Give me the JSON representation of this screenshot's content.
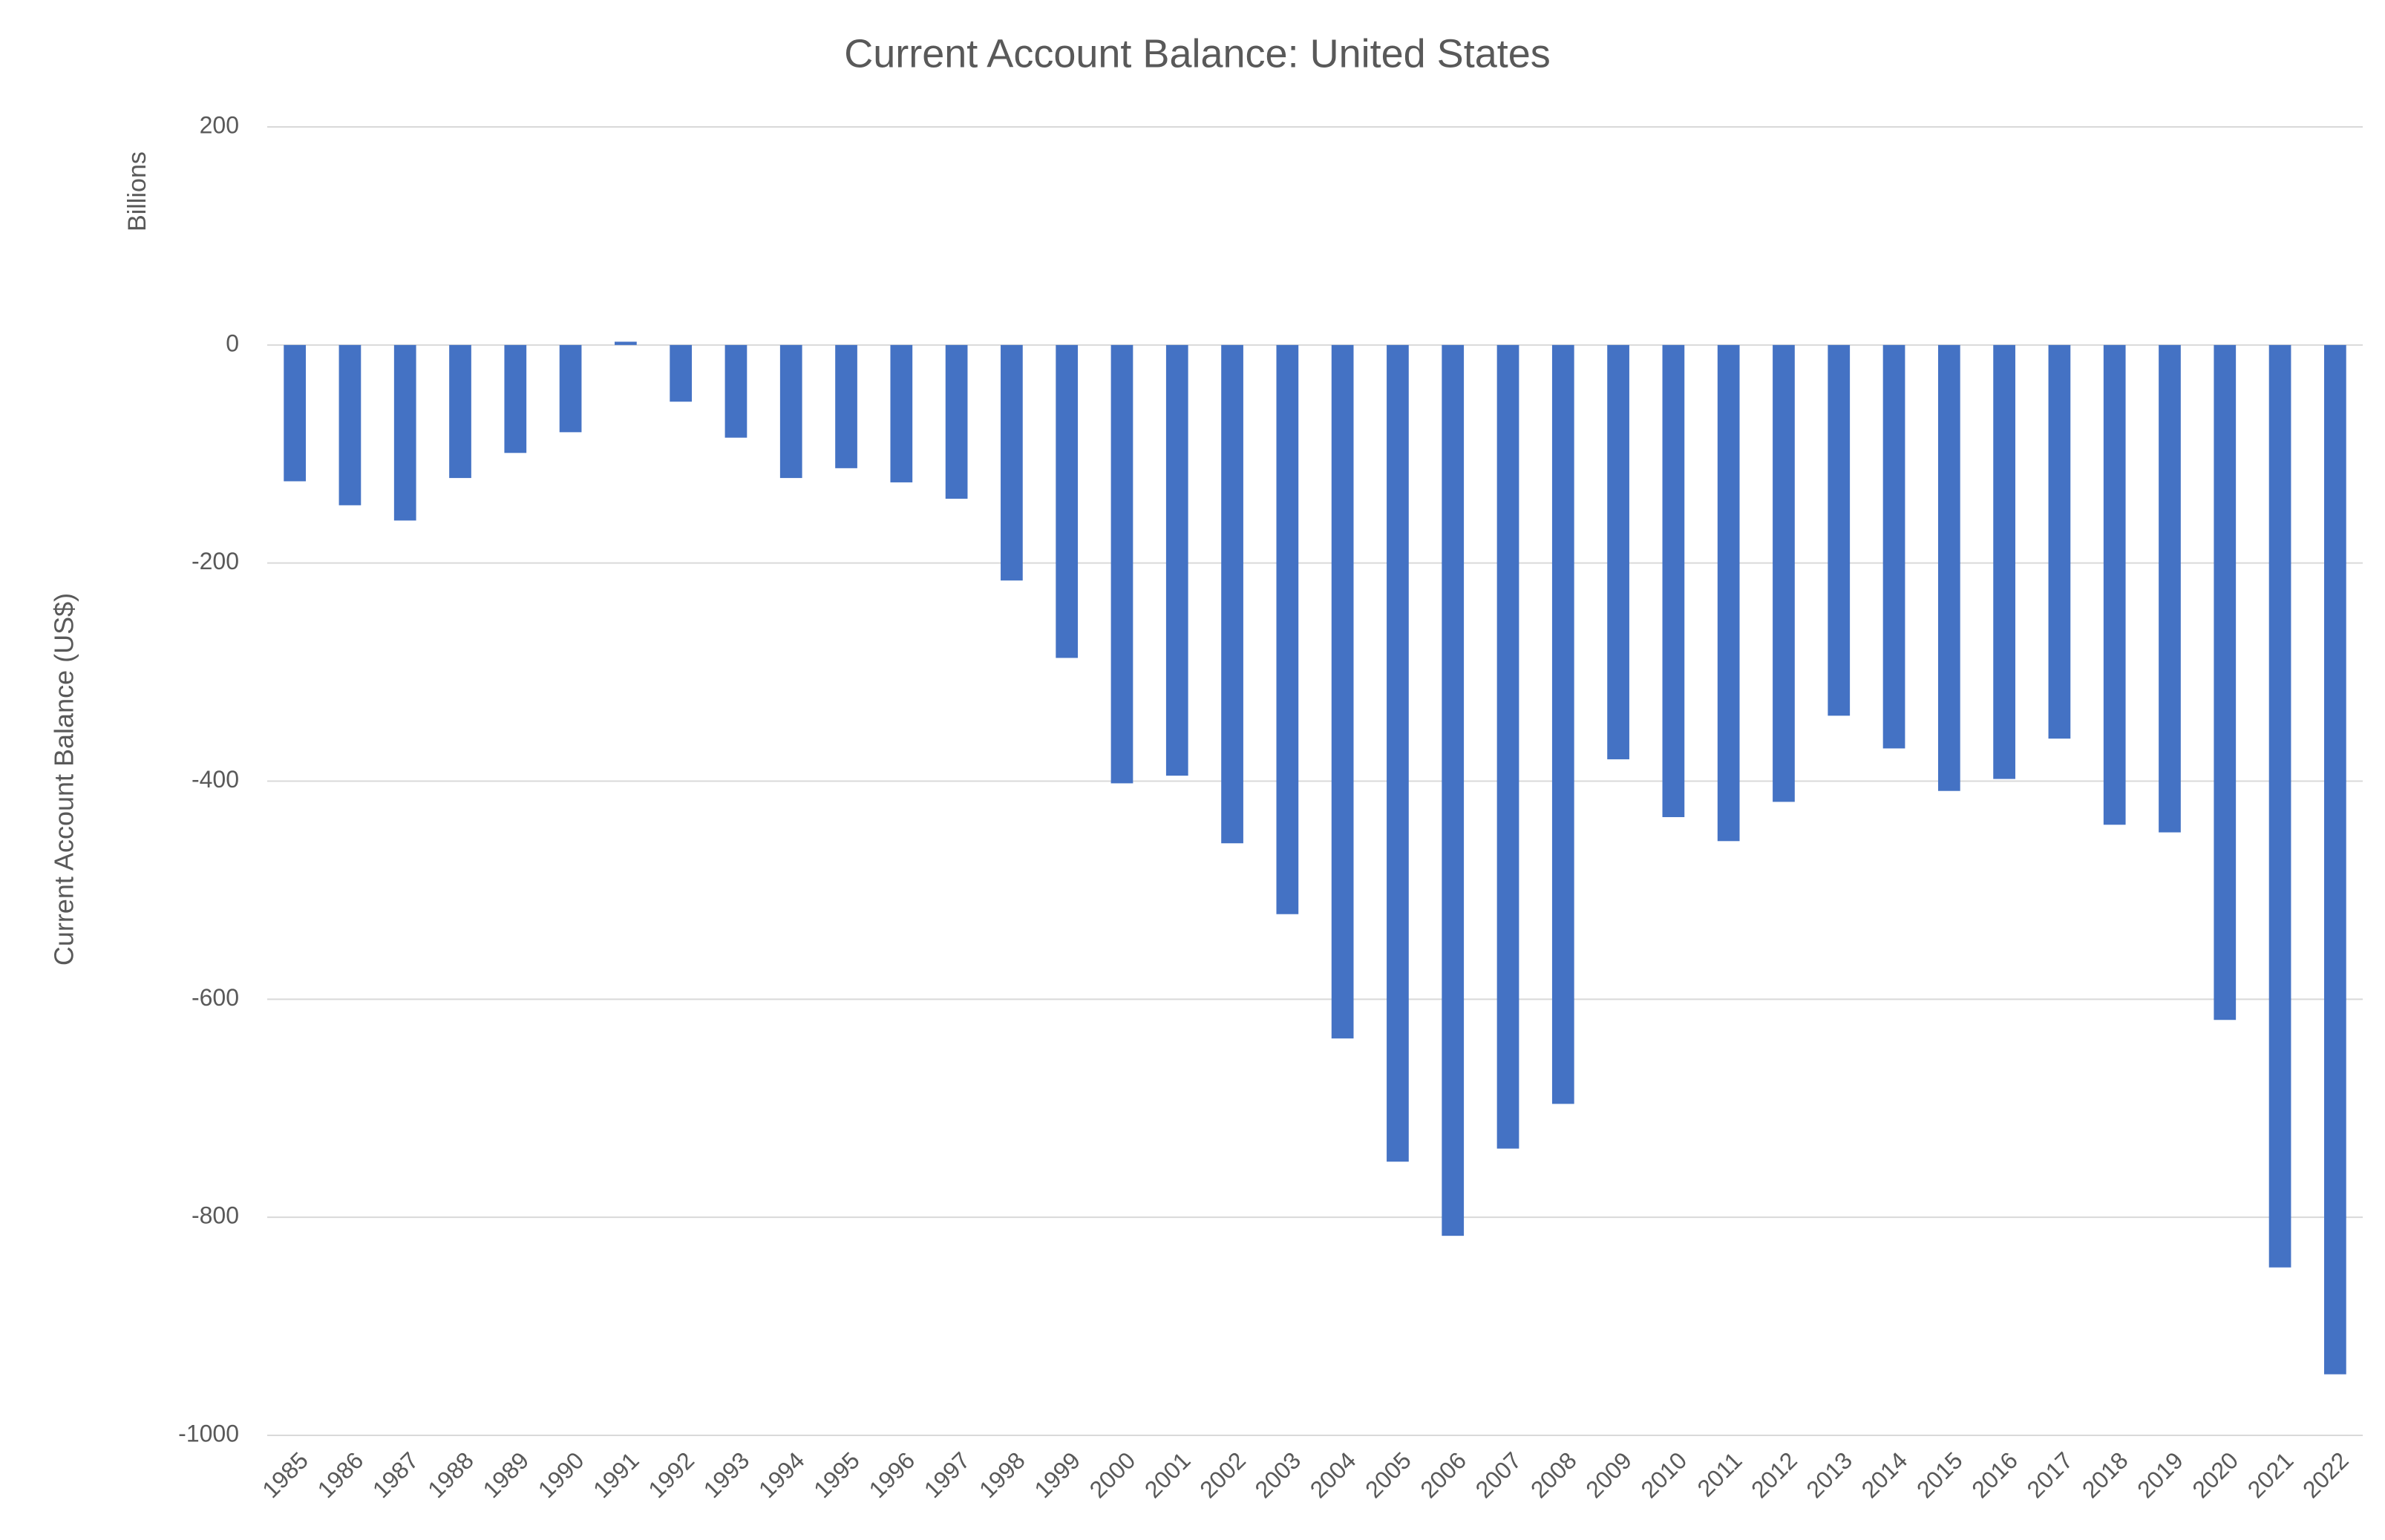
{
  "chart_data": {
    "type": "bar",
    "title": "Current Account Balance: United States",
    "y_label": "Current Account Balance (US$)",
    "unit_label": "Billions",
    "categories": [
      "1985",
      "1986",
      "1987",
      "1988",
      "1989",
      "1990",
      "1991",
      "1992",
      "1993",
      "1994",
      "1995",
      "1996",
      "1997",
      "1998",
      "1999",
      "2000",
      "2001",
      "2002",
      "2003",
      "2004",
      "2005",
      "2006",
      "2007",
      "2008",
      "2009",
      "2010",
      "2011",
      "2012",
      "2013",
      "2014",
      "2015",
      "2016",
      "2017",
      "2018",
      "2019",
      "2020",
      "2021",
      "2022"
    ],
    "values": [
      -125,
      -147,
      -161,
      -122,
      -99,
      -80,
      3,
      -52,
      -85,
      -122,
      -113,
      -126,
      -141,
      -216,
      -287,
      -402,
      -395,
      -457,
      -522,
      -636,
      -749,
      -817,
      -737,
      -696,
      -380,
      -433,
      -455,
      -419,
      -340,
      -370,
      -409,
      -398,
      -361,
      -440,
      -447,
      -619,
      -846,
      -944
    ],
    "color": "#4472c4",
    "ylim": [
      -1000,
      200
    ],
    "yticks": [
      200,
      0,
      -200,
      -400,
      -600,
      -800,
      -1000
    ],
    "grid": true
  }
}
